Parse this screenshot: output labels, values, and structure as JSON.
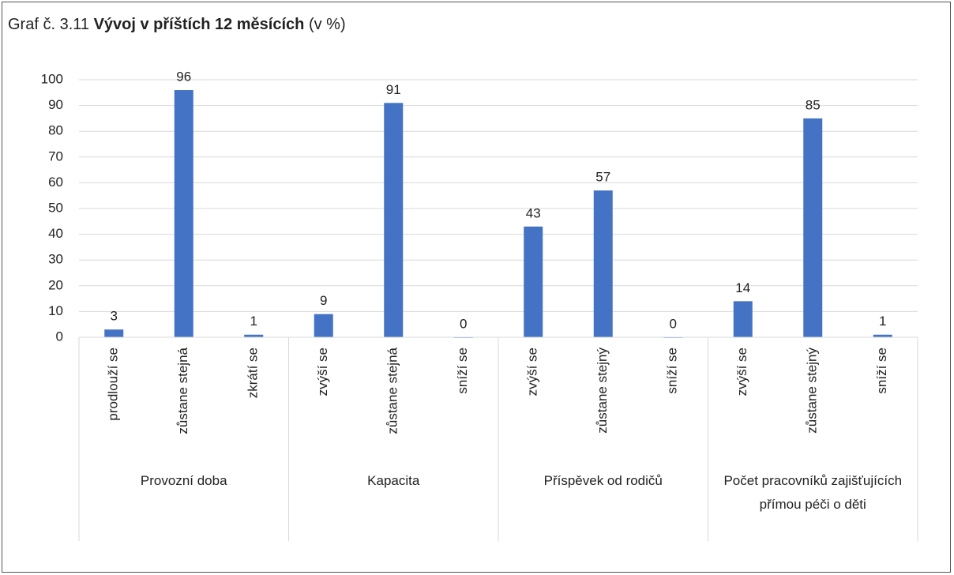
{
  "chart_data": {
    "type": "bar",
    "title_parts": [
      "Graf č. 3.11",
      "Vývoj v příštích 12 měsících",
      "(v %)"
    ],
    "groups": [
      {
        "name": "Provozní doba",
        "categories": [
          "prodlouží se",
          "zůstane stejná",
          "zkrátí se"
        ],
        "values": [
          3,
          96,
          1
        ]
      },
      {
        "name": "Kapacita",
        "categories": [
          "zvýší se",
          "zůstane stejná",
          "sníží se"
        ],
        "values": [
          9,
          91,
          0
        ]
      },
      {
        "name": "Příspěvek od rodičů",
        "categories": [
          "zvýší se",
          "zůstane stejný",
          "sníží se"
        ],
        "values": [
          43,
          57,
          0
        ]
      },
      {
        "name": "Počet pracovníků zajišťujících přímou péči o děti",
        "categories": [
          "zvýší se",
          "zůstane stejný",
          "sníží se"
        ],
        "values": [
          14,
          85,
          1
        ]
      }
    ],
    "color": "#4472c4",
    "ylim": [
      0,
      100
    ],
    "yticks": [
      0,
      10,
      20,
      30,
      40,
      50,
      60,
      70,
      80,
      90,
      100
    ],
    "grid": true
  }
}
